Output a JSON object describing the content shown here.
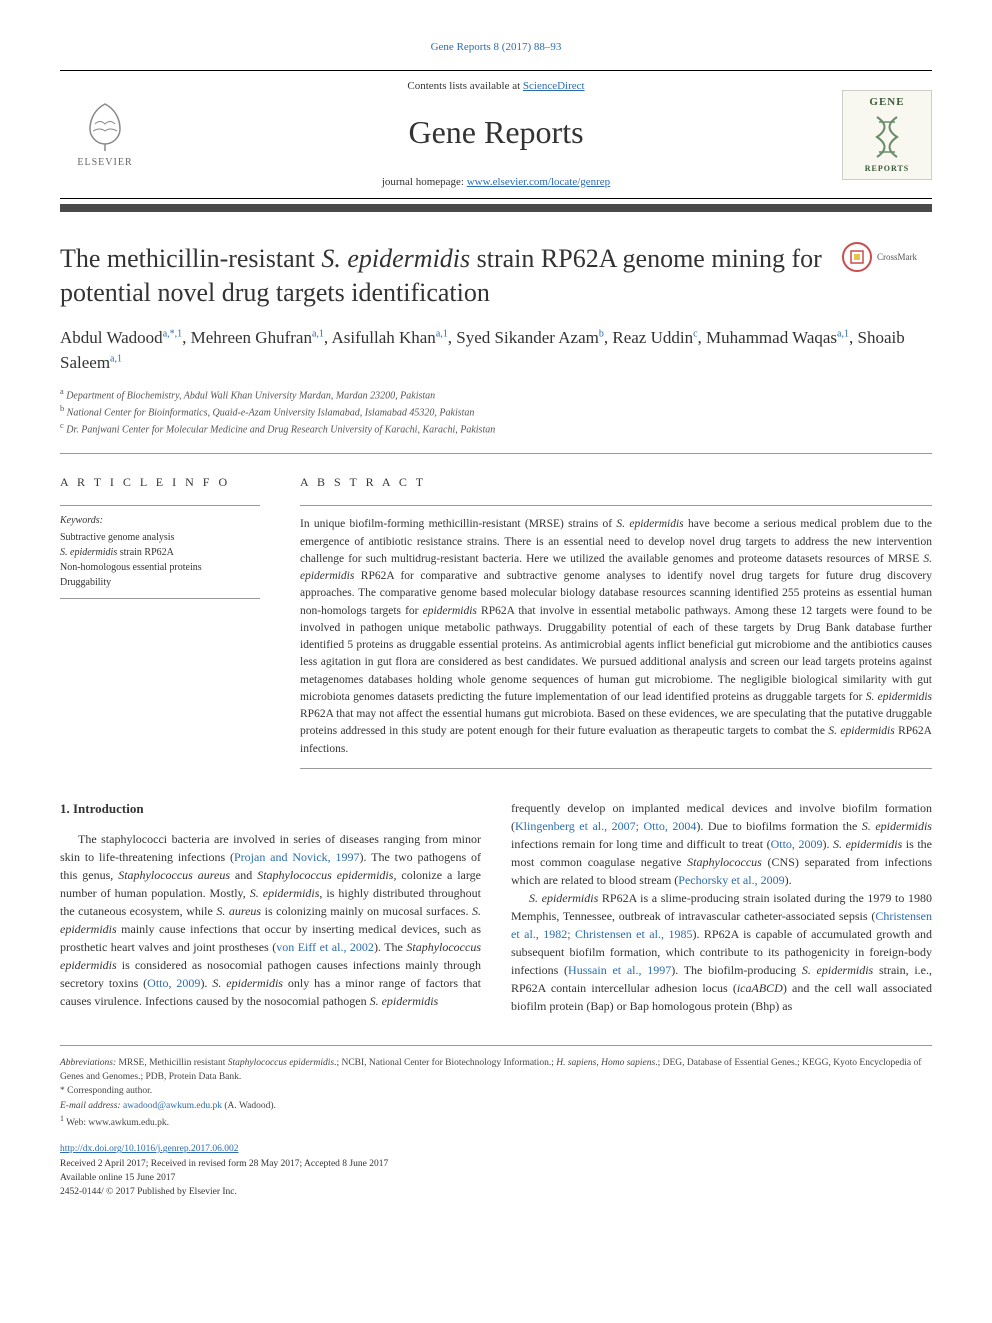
{
  "top_citation": "Gene Reports 8 (2017) 88–93",
  "header": {
    "contents_text": "Contents lists available at ",
    "contents_link": "ScienceDirect",
    "journal_name": "Gene Reports",
    "homepage_text": "journal homepage: ",
    "homepage_link": "www.elsevier.com/locate/genrep",
    "elsevier_label": "ELSEVIER",
    "gene_label": "GENE",
    "gene_sublabel": "REPORTS"
  },
  "crossmark": "CrossMark",
  "title_pre": "The methicillin-resistant ",
  "title_em": "S. epidermidis",
  "title_post": " strain RP62A genome mining for potential novel drug targets identification",
  "authors_html": "Abdul Wadood<sup>a,*,1</sup>, Mehreen Ghufran<sup>a,1</sup>, Asifullah Khan<sup>a,1</sup>, Syed Sikander Azam<sup>b</sup>, Reaz Uddin<sup>c</sup>, Muhammad Waqas<sup>a,1</sup>, Shoaib Saleem<sup>a,1</sup>",
  "affiliations": {
    "a": "Department of Biochemistry, Abdul Wali Khan University Mardan, Mardan 23200, Pakistan",
    "b": "National Center for Bioinformatics, Quaid-e-Azam University Islamabad, Islamabad 45320, Pakistan",
    "c": "Dr. Panjwani Center for Molecular Medicine and Drug Research University of Karachi, Karachi, Pakistan"
  },
  "article_info_heading": "A R T I C L E  I N F O",
  "keywords_label": "Keywords:",
  "keywords": [
    "Subtractive genome analysis",
    "<em>S. epidermidis</em> strain RP62A",
    "Non-homologous essential proteins",
    "Druggability"
  ],
  "abstract_heading": "A B S T R A C T",
  "abstract": "In unique biofilm-forming methicillin-resistant (MRSE) strains of <em>S. epidermidis</em> have become a serious medical problem due to the emergence of antibiotic resistance strains. There is an essential need to develop novel drug targets to address the new intervention challenge for such multidrug-resistant bacteria. Here we utilized the available genomes and proteome datasets resources of MRSE <em>S. epidermidis</em> RP62A for comparative and subtractive genome analyses to identify novel drug targets for future drug discovery approaches. The comparative genome based molecular biology database resources scanning identified 255 proteins as essential human non-homologs targets for <em>epidermidis</em> RP62A that involve in essential metabolic pathways. Among these 12 targets were found to be involved in pathogen unique metabolic pathways. Druggability potential of each of these targets by Drug Bank database further identified 5 proteins as druggable essential proteins. As antimicrobial agents inflict beneficial gut microbiome and the antibiotics causes less agitation in gut flora are considered as best candidates. We pursued additional analysis and screen our lead targets proteins against metagenomes databases holding whole genome sequences of human gut microbiome. The negligible biological similarity with gut microbiota genomes datasets predicting the future implementation of our lead identified proteins as druggable targets for <em>S. epidermidis</em> RP62A that may not affect the essential humans gut microbiota. Based on these evidences, we are speculating that the putative druggable proteins addressed in this study are potent enough for their future evaluation as therapeutic targets to combat the <em>S. epidermidis</em> RP62A infections.",
  "introduction_heading": "1. Introduction",
  "intro_col1": "The staphylococci bacteria are involved in series of diseases ranging from minor skin to life-threatening infections (<a href='#'>Projan and Novick, 1997</a>). The two pathogens of this genus, <em>Staphylococcus aureus</em> and <em>Staphylococcus epidermidis</em>, colonize a large number of human population. Mostly, <em>S. epidermidis</em>, is highly distributed throughout the cutaneous ecosystem, while <em>S. aureus</em> is colonizing mainly on mucosal surfaces. <em>S. epidermidis</em> mainly cause infections that occur by inserting medical devices, such as prosthetic heart valves and joint prostheses (<a href='#'>von Eiff et al., 2002</a>). The <em>Staphylococcus epidermidis</em> is considered as nosocomial pathogen causes infections mainly through secretory toxins (<a href='#'>Otto, 2009</a>). <em>S. epidermidis</em> only has a minor range of factors that causes virulence. Infections caused by the nosocomial pathogen <em>S. epidermidis</em>",
  "intro_col2": "frequently develop on implanted medical devices and involve biofilm formation (<a href='#'>Klingenberg et al., 2007; Otto, 2004</a>). Due to biofilms formation the <em>S. epidermidis</em> infections remain for long time and difficult to treat (<a href='#'>Otto, 2009</a>). <em>S. epidermidis</em> is the most common coagulase negative <em>Staphylococcus</em> (CNS) separated from infections which are related to blood stream (<a href='#'>Pechorsky et al., 2009</a>).",
  "intro_col2_p2": "<em>S. epidermidis</em> RP62A is a slime-producing strain isolated during the 1979 to 1980 Memphis, Tennessee, outbreak of intravascular catheter-associated sepsis (<a href='#'>Christensen et al., 1982; Christensen et al., 1985</a>). RP62A is capable of accumulated growth and subsequent biofilm formation, which contribute to its pathogenicity in foreign-body infections (<a href='#'>Hussain et al., 1997</a>). The biofilm-producing <em>S. epidermidis</em> strain, i.e., RP62A contain intercellular adhesion locus (<em>icaABCD</em>) and the cell wall associated biofilm protein (Bap) or Bap homologous protein (Bhp) as",
  "footer": {
    "abbrev_label": "Abbreviations:",
    "abbrev_text": " MRSE, Methicillin resistant <em>Staphylococcus epidermidis</em>.; NCBI, National Center for Biotechnology Information.; <em>H. sapiens</em>, <em>Homo sapiens</em>.; DEG, Database of Essential Genes.; KEGG, Kyoto Encyclopedia of Genes and Genomes.; PDB, Protein Data Bank.",
    "corresponding": "* Corresponding author.",
    "email_label": "E-mail address: ",
    "email": "awadood@awkum.edu.pk",
    "email_name": " (A. Wadood).",
    "web": "Web: www.awkum.edu.pk.",
    "doi": "http://dx.doi.org/10.1016/j.genrep.2017.06.002",
    "received": "Received 2 April 2017; Received in revised form 28 May 2017; Accepted 8 June 2017",
    "available": "Available online 15 June 2017",
    "issn": "2452-0144/ © 2017 Published by Elsevier Inc."
  },
  "colors": {
    "link": "#2b6cb0",
    "rule": "#4a4a4a",
    "crossmark_ring": "#c94d4d",
    "gene_green": "#3a5a3a",
    "text": "#333333",
    "muted": "#555555"
  }
}
